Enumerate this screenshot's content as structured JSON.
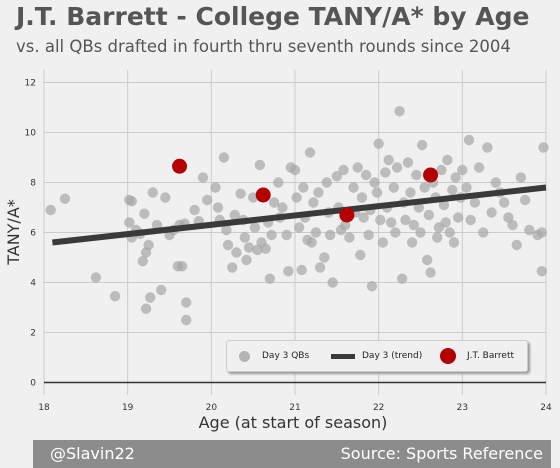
{
  "header": {
    "title": "J.T. Barrett - College TANY/A* by Age",
    "subtitle": "vs. all QBs drafted in fourth thru seventh rounds since 2004"
  },
  "footer": {
    "left": "@Slavin22",
    "right": "Source: Sports Reference"
  },
  "legend": {
    "day3": "Day 3 QBs",
    "trend": "Day 3 (trend)",
    "player": "J.T. Barrett"
  },
  "colors": {
    "background": "#f0f0f0",
    "grid": "#cbcbcb",
    "day3_points": "#a8a8a8",
    "trend": "#3a3a3a",
    "player": "#b40000"
  },
  "chart_data": {
    "type": "scatter",
    "xlabel": "Age (at start of season)",
    "ylabel": "TANY/A*",
    "xlim": [
      18,
      24
    ],
    "ylim": [
      -0.5,
      12.5
    ],
    "xticks": [
      18,
      19,
      20,
      21,
      22,
      23,
      24
    ],
    "yticks": [
      0,
      2,
      4,
      6,
      8,
      10,
      12
    ],
    "grid": true,
    "legend_position": "lower-right",
    "trend": {
      "name": "Day 3 (trend)",
      "x": [
        18.1,
        24.0
      ],
      "y": [
        5.6,
        7.8
      ]
    },
    "player": {
      "name": "J.T. Barrett",
      "x": [
        19.62,
        20.62,
        21.62,
        22.62
      ],
      "y": [
        8.65,
        7.5,
        6.7,
        8.3
      ]
    },
    "series": [
      {
        "name": "Day 3 QBs",
        "points": [
          [
            18.08,
            6.9
          ],
          [
            18.25,
            7.35
          ],
          [
            18.62,
            4.2
          ],
          [
            18.85,
            3.45
          ],
          [
            19.02,
            7.3
          ],
          [
            19.02,
            6.4
          ],
          [
            19.05,
            5.8
          ],
          [
            19.05,
            7.25
          ],
          [
            19.1,
            6.1
          ],
          [
            19.15,
            5.95
          ],
          [
            19.18,
            4.85
          ],
          [
            19.2,
            6.75
          ],
          [
            19.22,
            5.2
          ],
          [
            19.22,
            2.95
          ],
          [
            19.25,
            5.5
          ],
          [
            19.27,
            3.4
          ],
          [
            19.3,
            7.6
          ],
          [
            19.35,
            6.3
          ],
          [
            19.4,
            3.7
          ],
          [
            19.45,
            7.4
          ],
          [
            19.5,
            5.9
          ],
          [
            19.55,
            6.1
          ],
          [
            19.6,
            4.65
          ],
          [
            19.62,
            6.3
          ],
          [
            19.65,
            4.65
          ],
          [
            19.68,
            6.35
          ],
          [
            19.7,
            3.2
          ],
          [
            19.7,
            2.5
          ],
          [
            19.8,
            6.9
          ],
          [
            19.85,
            6.45
          ],
          [
            19.9,
            8.2
          ],
          [
            19.95,
            7.3
          ],
          [
            20.05,
            7.8
          ],
          [
            20.08,
            7.0
          ],
          [
            20.1,
            6.5
          ],
          [
            20.15,
            9.0
          ],
          [
            20.18,
            6.1
          ],
          [
            20.2,
            5.5
          ],
          [
            20.25,
            4.6
          ],
          [
            20.28,
            6.7
          ],
          [
            20.3,
            5.2
          ],
          [
            20.35,
            7.55
          ],
          [
            20.38,
            6.5
          ],
          [
            20.4,
            5.8
          ],
          [
            20.42,
            4.9
          ],
          [
            20.45,
            5.4
          ],
          [
            20.5,
            7.4
          ],
          [
            20.52,
            6.2
          ],
          [
            20.55,
            5.3
          ],
          [
            20.58,
            8.7
          ],
          [
            20.6,
            5.6
          ],
          [
            20.65,
            5.35
          ],
          [
            20.68,
            6.4
          ],
          [
            20.7,
            4.15
          ],
          [
            20.72,
            5.9
          ],
          [
            20.75,
            7.2
          ],
          [
            20.8,
            8.0
          ],
          [
            20.82,
            6.6
          ],
          [
            20.85,
            7.0
          ],
          [
            20.9,
            5.9
          ],
          [
            20.92,
            4.45
          ],
          [
            20.95,
            8.6
          ],
          [
            21.0,
            8.5
          ],
          [
            21.02,
            7.4
          ],
          [
            21.05,
            6.2
          ],
          [
            21.08,
            4.5
          ],
          [
            21.1,
            7.8
          ],
          [
            21.12,
            6.6
          ],
          [
            21.15,
            5.7
          ],
          [
            21.18,
            9.2
          ],
          [
            21.2,
            5.6
          ],
          [
            21.22,
            7.2
          ],
          [
            21.25,
            6.0
          ],
          [
            21.28,
            7.6
          ],
          [
            21.3,
            4.6
          ],
          [
            21.35,
            5.0
          ],
          [
            21.38,
            8.0
          ],
          [
            21.4,
            6.8
          ],
          [
            21.42,
            5.9
          ],
          [
            21.45,
            4.0
          ],
          [
            21.5,
            8.25
          ],
          [
            21.52,
            7.0
          ],
          [
            21.55,
            6.1
          ],
          [
            21.58,
            8.5
          ],
          [
            21.6,
            6.3
          ],
          [
            21.65,
            5.8
          ],
          [
            21.7,
            7.8
          ],
          [
            21.72,
            6.8
          ],
          [
            21.75,
            8.6
          ],
          [
            21.78,
            5.1
          ],
          [
            21.8,
            7.4
          ],
          [
            21.82,
            6.6
          ],
          [
            21.85,
            8.3
          ],
          [
            21.88,
            5.9
          ],
          [
            21.9,
            6.9
          ],
          [
            21.92,
            3.85
          ],
          [
            21.95,
            8.0
          ],
          [
            21.98,
            7.6
          ],
          [
            22.0,
            9.55
          ],
          [
            22.02,
            6.5
          ],
          [
            22.05,
            5.6
          ],
          [
            22.08,
            8.4
          ],
          [
            22.1,
            7.0
          ],
          [
            22.12,
            8.9
          ],
          [
            22.15,
            6.4
          ],
          [
            22.18,
            7.8
          ],
          [
            22.2,
            6.0
          ],
          [
            22.22,
            8.6
          ],
          [
            22.25,
            10.85
          ],
          [
            22.28,
            4.15
          ],
          [
            22.3,
            7.2
          ],
          [
            22.32,
            6.5
          ],
          [
            22.35,
            8.8
          ],
          [
            22.38,
            7.6
          ],
          [
            22.4,
            5.6
          ],
          [
            22.42,
            6.3
          ],
          [
            22.45,
            8.3
          ],
          [
            22.48,
            7.0
          ],
          [
            22.5,
            6.0
          ],
          [
            22.52,
            9.5
          ],
          [
            22.55,
            7.8
          ],
          [
            22.58,
            4.9
          ],
          [
            22.6,
            6.7
          ],
          [
            22.62,
            4.4
          ],
          [
            22.65,
            8.0
          ],
          [
            22.68,
            7.4
          ],
          [
            22.7,
            5.8
          ],
          [
            22.72,
            6.2
          ],
          [
            22.75,
            8.5
          ],
          [
            22.78,
            7.1
          ],
          [
            22.8,
            6.4
          ],
          [
            22.82,
            8.9
          ],
          [
            22.85,
            6.0
          ],
          [
            22.88,
            7.7
          ],
          [
            22.9,
            5.6
          ],
          [
            22.92,
            8.2
          ],
          [
            22.95,
            6.6
          ],
          [
            22.98,
            7.4
          ],
          [
            23.0,
            8.5
          ],
          [
            23.05,
            7.8
          ],
          [
            23.08,
            9.7
          ],
          [
            23.1,
            6.5
          ],
          [
            23.15,
            7.2
          ],
          [
            23.2,
            8.6
          ],
          [
            23.25,
            6.0
          ],
          [
            23.3,
            9.4
          ],
          [
            23.35,
            6.8
          ],
          [
            23.4,
            8.0
          ],
          [
            23.45,
            7.6
          ],
          [
            23.5,
            7.2
          ],
          [
            23.55,
            6.6
          ],
          [
            23.6,
            6.3
          ],
          [
            23.65,
            5.5
          ],
          [
            23.7,
            8.2
          ],
          [
            23.75,
            7.3
          ],
          [
            23.8,
            6.1
          ],
          [
            23.95,
            6.0
          ],
          [
            23.95,
            4.45
          ],
          [
            23.97,
            9.4
          ],
          [
            23.9,
            5.9
          ]
        ]
      }
    ]
  }
}
